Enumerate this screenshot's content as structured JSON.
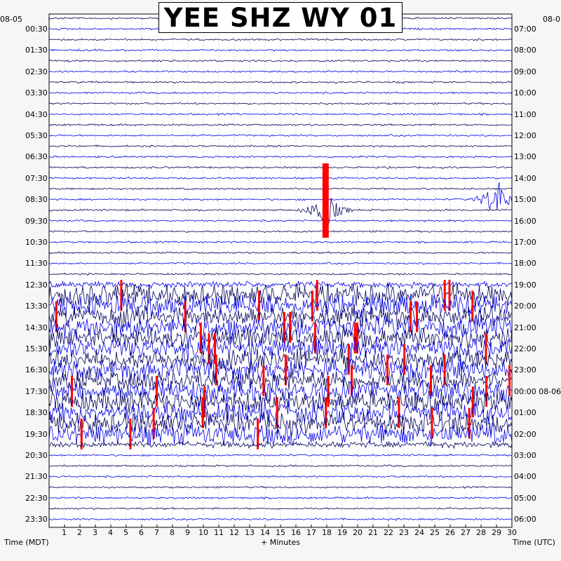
{
  "chart_data": {
    "type": "helicorder",
    "title": "YEE SHZ WY 01",
    "date_left": "08-05",
    "date_right": "08-0",
    "date_right_mid": "08-06",
    "xlabel": "+ Minutes",
    "xlabel_left": "Time (MDT)",
    "xlabel_right": "Time (UTC)",
    "xlim": [
      0,
      30
    ],
    "x_ticks": [
      "1",
      "2",
      "3",
      "4",
      "5",
      "6",
      "7",
      "8",
      "9",
      "10",
      "11",
      "12",
      "13",
      "14",
      "15",
      "16",
      "17",
      "18",
      "19",
      "20",
      "21",
      "22",
      "23",
      "24",
      "25",
      "26",
      "27",
      "28",
      "29",
      "30"
    ],
    "left_time_labels": [
      "00:30",
      "01:30",
      "02:30",
      "03:30",
      "04:30",
      "05:30",
      "06:30",
      "07:30",
      "08:30",
      "09:30",
      "10:30",
      "11:30",
      "12:30",
      "13:30",
      "14:30",
      "15:30",
      "16:30",
      "17:30",
      "18:30",
      "19:30",
      "20:30",
      "21:30",
      "22:30",
      "23:30"
    ],
    "right_time_labels": [
      "07:00",
      "08:00",
      "09:00",
      "10:00",
      "11:00",
      "12:00",
      "13:00",
      "14:00",
      "15:00",
      "16:00",
      "17:00",
      "18:00",
      "19:00",
      "20:00",
      "21:00",
      "22:00",
      "23:00",
      "00:00",
      "01:00",
      "02:00",
      "03:00",
      "04:00",
      "05:00",
      "06:00"
    ],
    "trace_count": 48,
    "trace_colors": [
      "#00005a",
      "#0000e6",
      "#ff0000"
    ],
    "grid": true,
    "events": [
      {
        "trace": 17,
        "minute": 29.0,
        "label": "large event"
      },
      {
        "trace": 18,
        "minute": 17.9,
        "label": "clipped event"
      }
    ],
    "active_period_traces": [
      26,
      39
    ]
  }
}
